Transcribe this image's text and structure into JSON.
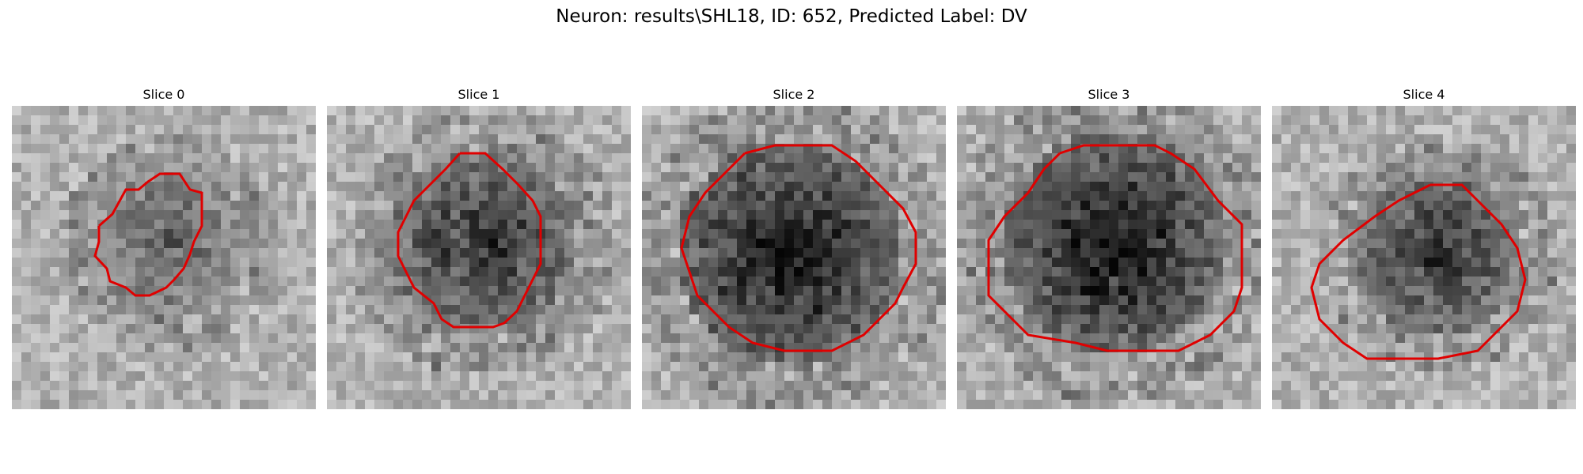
{
  "figure": {
    "title": "Neuron: results\\SHL18, ID: 652, Predicted Label: DV"
  },
  "panels": [
    {
      "title": "Slice 0",
      "darkness": "light",
      "contour": "small-irregular"
    },
    {
      "title": "Slice 1",
      "darkness": "medium",
      "contour": "octagon"
    },
    {
      "title": "Slice 2",
      "darkness": "dark",
      "contour": "octagon"
    },
    {
      "title": "Slice 3",
      "darkness": "dark",
      "contour": "octagon"
    },
    {
      "title": "Slice 4",
      "darkness": "medium",
      "contour": "irregular"
    }
  ],
  "colors": {
    "contour": "#e00000",
    "background": "#ffffff"
  }
}
